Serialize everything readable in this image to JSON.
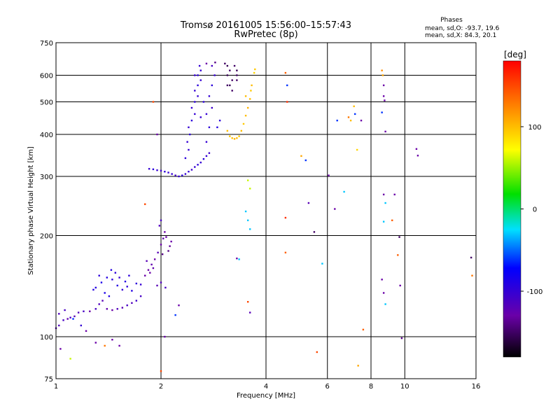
{
  "chart_data": {
    "type": "scatter",
    "title": "Tromsø 20161005  15:56:00–15:57:43",
    "subtitle": "RwPretec (8p)",
    "xlabel": "Frequency [MHz]",
    "ylabel": "Stationary phase Virtual Height [km]",
    "x_scale": "log",
    "y_scale": "log",
    "xlim": [
      1,
      16
    ],
    "ylim": [
      75,
      750
    ],
    "x_ticks": [
      1,
      2,
      4,
      6,
      8,
      10,
      16
    ],
    "x_tick_labels": [
      "1",
      "2",
      "4",
      "6",
      "8",
      "10",
      "16"
    ],
    "y_ticks": [
      75,
      100,
      200,
      300,
      400,
      500,
      600,
      750
    ],
    "y_tick_labels": [
      "75",
      "100",
      "200",
      "300",
      "400",
      "500",
      "600",
      "750"
    ],
    "grid": true,
    "phases_box": {
      "heading": "Phases",
      "line_o": "mean, sd,O: -93.7, 19.6",
      "line_x": "mean, sd,X:  84.3, 20.1"
    },
    "colorbar": {
      "label": "[deg]",
      "range": [
        -180,
        180
      ],
      "ticks": [
        100,
        0,
        -100
      ],
      "tick_labels": [
        "100",
        "0",
        "-100"
      ]
    },
    "series": [
      {
        "color_variable": "phase_deg",
        "points": [
          [
            1.0,
            106,
            -120
          ],
          [
            1.02,
            108,
            -115
          ],
          [
            1.05,
            112,
            -110
          ],
          [
            1.08,
            113,
            -125
          ],
          [
            1.1,
            114,
            -110
          ],
          [
            1.13,
            115,
            -120
          ],
          [
            1.16,
            118,
            -115
          ],
          [
            1.2,
            119,
            -110
          ],
          [
            1.25,
            119,
            -130
          ],
          [
            1.3,
            121,
            -110
          ],
          [
            1.33,
            125,
            -115
          ],
          [
            1.36,
            128,
            -120
          ],
          [
            1.4,
            121,
            -125
          ],
          [
            1.45,
            120,
            -130
          ],
          [
            1.5,
            121,
            -115
          ],
          [
            1.55,
            122,
            -120
          ],
          [
            1.6,
            124,
            -110
          ],
          [
            1.65,
            126,
            -115
          ],
          [
            1.7,
            128,
            -105
          ],
          [
            1.75,
            132,
            -110
          ],
          [
            1.02,
            117,
            -115
          ],
          [
            1.06,
            120,
            -110
          ],
          [
            1.3,
            140,
            -90
          ],
          [
            1.35,
            145,
            -85
          ],
          [
            1.4,
            150,
            -90
          ],
          [
            1.45,
            148,
            -95
          ],
          [
            1.5,
            142,
            -90
          ],
          [
            1.55,
            138,
            -100
          ],
          [
            1.6,
            141,
            -95
          ],
          [
            1.38,
            135,
            -85
          ],
          [
            1.42,
            132,
            -90
          ],
          [
            1.48,
            155,
            -95
          ],
          [
            1.52,
            150,
            -100
          ],
          [
            1.58,
            146,
            -90
          ],
          [
            1.33,
            152,
            -95
          ],
          [
            1.65,
            137,
            -90
          ],
          [
            1.7,
            144,
            -95
          ],
          [
            1.75,
            143,
            -100
          ],
          [
            1.28,
            138,
            -90
          ],
          [
            1.62,
            152,
            -95
          ],
          [
            1.44,
            158,
            -90
          ],
          [
            1.8,
            152,
            -130
          ],
          [
            1.84,
            158,
            -130
          ],
          [
            1.88,
            164,
            -125
          ],
          [
            1.92,
            170,
            -130
          ],
          [
            1.96,
            178,
            -120
          ],
          [
            2.0,
            188,
            -130
          ],
          [
            2.03,
            196,
            -125
          ],
          [
            2.05,
            205,
            -130
          ],
          [
            2.07,
            198,
            -130
          ],
          [
            1.98,
            214,
            -115
          ],
          [
            2.0,
            222,
            -110
          ],
          [
            1.9,
            160,
            -125
          ],
          [
            1.86,
            155,
            -130
          ],
          [
            1.95,
            142,
            -120
          ],
          [
            2.0,
            145,
            -115
          ],
          [
            2.06,
            140,
            -110
          ],
          [
            2.1,
            180,
            -140
          ],
          [
            2.12,
            186,
            -135
          ],
          [
            2.14,
            192,
            -130
          ],
          [
            1.82,
            168,
            -120
          ],
          [
            2.02,
            176,
            -140
          ],
          [
            1.85,
            316,
            -100
          ],
          [
            1.9,
            315,
            -95
          ],
          [
            1.95,
            313,
            -100
          ],
          [
            2.0,
            312,
            -105
          ],
          [
            2.05,
            310,
            -95
          ],
          [
            2.1,
            308,
            -100
          ],
          [
            2.15,
            305,
            -100
          ],
          [
            2.2,
            302,
            -105
          ],
          [
            2.25,
            300,
            -100
          ],
          [
            2.3,
            302,
            -95
          ],
          [
            2.35,
            305,
            -100
          ],
          [
            2.4,
            310,
            -100
          ],
          [
            2.45,
            314,
            -105
          ],
          [
            2.5,
            320,
            -100
          ],
          [
            2.55,
            325,
            -95
          ],
          [
            2.6,
            330,
            -100
          ],
          [
            2.65,
            338,
            -95
          ],
          [
            2.7,
            345,
            -100
          ],
          [
            2.75,
            352,
            -105
          ],
          [
            2.35,
            340,
            -95
          ],
          [
            2.4,
            360,
            -100
          ],
          [
            2.38,
            380,
            -100
          ],
          [
            2.42,
            400,
            -95
          ],
          [
            2.4,
            420,
            -100
          ],
          [
            2.45,
            440,
            -95
          ],
          [
            2.5,
            460,
            -100
          ],
          [
            2.45,
            480,
            -100
          ],
          [
            2.5,
            500,
            -95
          ],
          [
            2.55,
            520,
            -100
          ],
          [
            2.5,
            540,
            -100
          ],
          [
            2.55,
            560,
            -95
          ],
          [
            2.6,
            580,
            -100
          ],
          [
            2.55,
            600,
            -95
          ],
          [
            2.6,
            620,
            -100
          ],
          [
            2.58,
            640,
            -100
          ],
          [
            2.7,
            380,
            -100
          ],
          [
            2.75,
            420,
            -95
          ],
          [
            2.7,
            460,
            -100
          ],
          [
            2.8,
            480,
            -105
          ],
          [
            2.75,
            520,
            -100
          ],
          [
            2.8,
            560,
            -95
          ],
          [
            2.85,
            600,
            -100
          ],
          [
            2.8,
            640,
            -110
          ],
          [
            2.65,
            500,
            -95
          ],
          [
            2.6,
            450,
            -100
          ],
          [
            2.9,
            420,
            -90
          ],
          [
            2.95,
            440,
            -95
          ],
          [
            2.5,
            600,
            -100
          ],
          [
            2.7,
            650,
            -130
          ],
          [
            2.86,
            655,
            -140
          ],
          [
            3.05,
            650,
            -150
          ],
          [
            3.1,
            640,
            -155
          ],
          [
            3.15,
            620,
            -150
          ],
          [
            3.1,
            600,
            -155
          ],
          [
            3.2,
            580,
            -150
          ],
          [
            3.15,
            560,
            -155
          ],
          [
            3.2,
            540,
            -150
          ],
          [
            3.25,
            640,
            -150
          ],
          [
            3.3,
            620,
            -155
          ],
          [
            3.3,
            600,
            -150
          ],
          [
            3.3,
            580,
            -150
          ],
          [
            3.1,
            560,
            -150
          ],
          [
            3.1,
            410,
            100
          ],
          [
            3.15,
            395,
            95
          ],
          [
            3.2,
            390,
            100
          ],
          [
            3.25,
            388,
            105
          ],
          [
            3.3,
            390,
            100
          ],
          [
            3.35,
            395,
            95
          ],
          [
            3.4,
            410,
            100
          ],
          [
            3.45,
            430,
            95
          ],
          [
            3.5,
            455,
            100
          ],
          [
            3.55,
            480,
            105
          ],
          [
            3.6,
            510,
            100
          ],
          [
            3.62,
            540,
            95
          ],
          [
            3.64,
            560,
            100
          ],
          [
            3.5,
            520,
            100
          ],
          [
            3.7,
            610,
            90
          ],
          [
            3.72,
            625,
            95
          ],
          [
            4.55,
            610,
            140
          ],
          [
            4.6,
            500,
            160
          ],
          [
            4.6,
            560,
            -60
          ],
          [
            4.55,
            226,
            160
          ],
          [
            4.55,
            178,
            140
          ],
          [
            5.05,
            345,
            110
          ],
          [
            5.2,
            335,
            -60
          ],
          [
            5.3,
            250,
            -120
          ],
          [
            5.5,
            205,
            -150
          ],
          [
            5.6,
            90,
            150
          ],
          [
            5.8,
            165,
            -30
          ],
          [
            6.05,
            302,
            -130
          ],
          [
            6.3,
            240,
            -130
          ],
          [
            6.4,
            440,
            -60
          ],
          [
            6.7,
            270,
            -30
          ],
          [
            6.9,
            450,
            130
          ],
          [
            7.0,
            440,
            100
          ],
          [
            7.15,
            485,
            100
          ],
          [
            7.2,
            460,
            -60
          ],
          [
            7.3,
            360,
            90
          ],
          [
            7.35,
            82,
            110
          ],
          [
            7.5,
            440,
            -130
          ],
          [
            7.6,
            105,
            140
          ],
          [
            8.6,
            620,
            120
          ],
          [
            8.65,
            600,
            110
          ],
          [
            8.7,
            560,
            -130
          ],
          [
            8.7,
            520,
            -130
          ],
          [
            8.75,
            505,
            -130
          ],
          [
            8.6,
            465,
            -60
          ],
          [
            8.8,
            408,
            -130
          ],
          [
            8.7,
            265,
            -130
          ],
          [
            8.8,
            250,
            -30
          ],
          [
            8.7,
            220,
            -30
          ],
          [
            8.6,
            148,
            -130
          ],
          [
            8.7,
            135,
            -130
          ],
          [
            8.8,
            125,
            -30
          ],
          [
            9.2,
            222,
            140
          ],
          [
            9.35,
            265,
            -130
          ],
          [
            9.55,
            175,
            140
          ],
          [
            9.65,
            198,
            -150
          ],
          [
            9.7,
            142,
            -130
          ],
          [
            9.8,
            99,
            -140
          ],
          [
            10.8,
            362,
            -130
          ],
          [
            10.9,
            346,
            -130
          ],
          [
            15.5,
            172,
            -150
          ],
          [
            15.6,
            152,
            130
          ],
          [
            3.5,
            236,
            -30
          ],
          [
            3.55,
            222,
            -30
          ],
          [
            3.6,
            276,
            60
          ],
          [
            3.55,
            292,
            60
          ],
          [
            3.6,
            209,
            -30
          ],
          [
            3.55,
            127,
            150
          ],
          [
            3.6,
            118,
            -120
          ],
          [
            1.8,
            248,
            150
          ],
          [
            1.9,
            500,
            150
          ],
          [
            1.95,
            400,
            -130
          ],
          [
            1.12,
            113,
            -60
          ],
          [
            1.18,
            108,
            -100
          ],
          [
            1.03,
            92,
            -130
          ],
          [
            1.1,
            86,
            60
          ],
          [
            1.22,
            104,
            -130
          ],
          [
            1.3,
            96,
            -130
          ],
          [
            1.38,
            94,
            130
          ],
          [
            1.45,
            98,
            -130
          ],
          [
            1.52,
            94,
            -130
          ],
          [
            2.0,
            79,
            150
          ],
          [
            2.05,
            100,
            -130
          ],
          [
            2.2,
            116,
            -60
          ],
          [
            2.25,
            124,
            -130
          ],
          [
            3.3,
            171,
            -130
          ],
          [
            3.35,
            170,
            -30
          ]
        ]
      }
    ]
  }
}
